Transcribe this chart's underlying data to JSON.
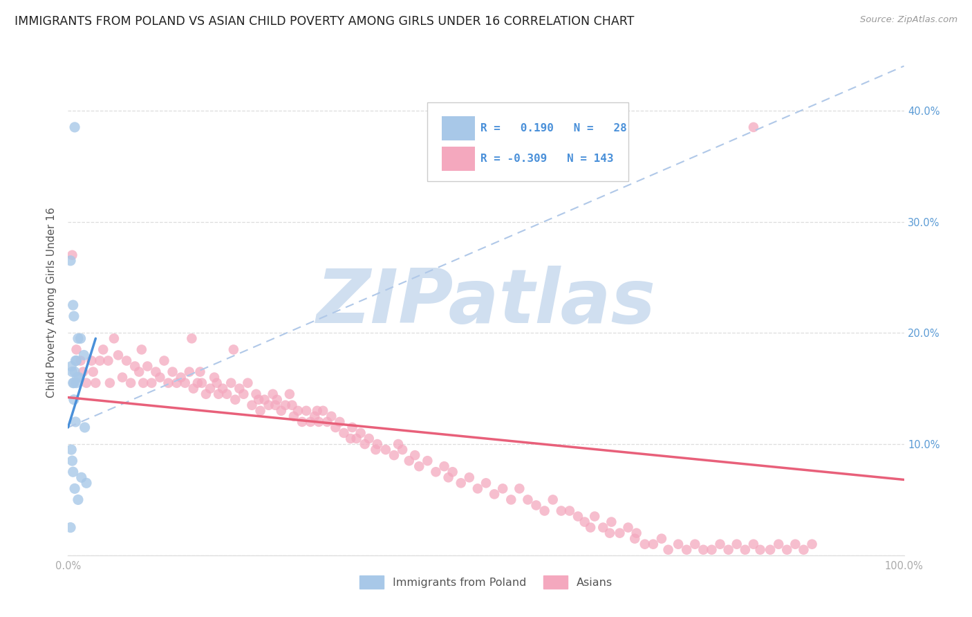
{
  "title": "IMMIGRANTS FROM POLAND VS ASIAN CHILD POVERTY AMONG GIRLS UNDER 16 CORRELATION CHART",
  "source": "Source: ZipAtlas.com",
  "ylabel": "Child Poverty Among Girls Under 16",
  "legend_label1": "Immigrants from Poland",
  "legend_label2": "Asians",
  "r1": 0.19,
  "n1": 28,
  "r2": -0.309,
  "n2": 143,
  "color_blue": "#a8c8e8",
  "color_pink": "#f4a8be",
  "color_blue_line": "#4a90d9",
  "color_pink_line": "#e8607a",
  "color_dashed": "#b0c8e8",
  "xlim": [
    0,
    1.0
  ],
  "ylim": [
    0,
    0.455
  ],
  "blue_line_x": [
    0.0,
    0.033
  ],
  "blue_line_y": [
    0.115,
    0.195
  ],
  "dash_line_x": [
    0.0,
    1.0
  ],
  "dash_line_y": [
    0.115,
    0.44
  ],
  "pink_line_x": [
    0.0,
    1.0
  ],
  "pink_line_y": [
    0.142,
    0.068
  ],
  "y_ticks": [
    0.0,
    0.1,
    0.2,
    0.3,
    0.4
  ],
  "y_tick_labels": [
    "",
    "10.0%",
    "20.0%",
    "30.0%",
    "40.0%"
  ],
  "watermark_text": "ZIPatlas",
  "watermark_color": "#d0dff0",
  "background_color": "#ffffff",
  "grid_color": "#dddddd",
  "title_color": "#222222",
  "source_color": "#999999",
  "ylabel_color": "#555555",
  "tick_color": "#aaaaaa",
  "right_tick_color": "#5b9bd5",
  "legend_text_color": "#4a90d9",
  "poland_x": [
    0.008,
    0.003,
    0.015,
    0.006,
    0.007,
    0.012,
    0.01,
    0.004,
    0.009,
    0.011,
    0.013,
    0.006,
    0.008,
    0.007,
    0.005,
    0.01,
    0.019,
    0.005,
    0.004,
    0.006,
    0.022,
    0.008,
    0.016,
    0.012,
    0.003,
    0.009,
    0.02,
    0.007
  ],
  "poland_y": [
    0.385,
    0.265,
    0.195,
    0.225,
    0.215,
    0.195,
    0.175,
    0.17,
    0.175,
    0.16,
    0.16,
    0.155,
    0.165,
    0.155,
    0.165,
    0.155,
    0.18,
    0.085,
    0.095,
    0.075,
    0.065,
    0.06,
    0.07,
    0.05,
    0.025,
    0.12,
    0.115,
    0.14
  ],
  "asian_x": [
    0.005,
    0.01,
    0.015,
    0.018,
    0.022,
    0.028,
    0.03,
    0.033,
    0.038,
    0.042,
    0.048,
    0.05,
    0.055,
    0.06,
    0.065,
    0.07,
    0.075,
    0.08,
    0.085,
    0.088,
    0.09,
    0.095,
    0.1,
    0.105,
    0.11,
    0.115,
    0.12,
    0.125,
    0.13,
    0.135,
    0.14,
    0.145,
    0.148,
    0.15,
    0.155,
    0.158,
    0.16,
    0.165,
    0.17,
    0.175,
    0.178,
    0.18,
    0.185,
    0.19,
    0.195,
    0.198,
    0.2,
    0.205,
    0.21,
    0.215,
    0.22,
    0.225,
    0.228,
    0.23,
    0.235,
    0.24,
    0.245,
    0.248,
    0.25,
    0.255,
    0.26,
    0.265,
    0.268,
    0.27,
    0.275,
    0.28,
    0.285,
    0.29,
    0.295,
    0.298,
    0.3,
    0.305,
    0.31,
    0.315,
    0.32,
    0.325,
    0.33,
    0.338,
    0.34,
    0.345,
    0.35,
    0.355,
    0.36,
    0.368,
    0.37,
    0.38,
    0.39,
    0.395,
    0.4,
    0.408,
    0.415,
    0.42,
    0.43,
    0.44,
    0.45,
    0.455,
    0.46,
    0.47,
    0.48,
    0.49,
    0.5,
    0.51,
    0.52,
    0.53,
    0.54,
    0.55,
    0.56,
    0.57,
    0.58,
    0.59,
    0.6,
    0.61,
    0.618,
    0.625,
    0.63,
    0.64,
    0.648,
    0.65,
    0.66,
    0.67,
    0.678,
    0.68,
    0.69,
    0.7,
    0.71,
    0.718,
    0.73,
    0.74,
    0.75,
    0.76,
    0.77,
    0.78,
    0.79,
    0.8,
    0.81,
    0.82,
    0.828,
    0.84,
    0.85,
    0.86,
    0.87,
    0.88,
    0.89
  ],
  "asian_y": [
    0.27,
    0.185,
    0.175,
    0.165,
    0.155,
    0.175,
    0.165,
    0.155,
    0.175,
    0.185,
    0.175,
    0.155,
    0.195,
    0.18,
    0.16,
    0.175,
    0.155,
    0.17,
    0.165,
    0.185,
    0.155,
    0.17,
    0.155,
    0.165,
    0.16,
    0.175,
    0.155,
    0.165,
    0.155,
    0.16,
    0.155,
    0.165,
    0.195,
    0.15,
    0.155,
    0.165,
    0.155,
    0.145,
    0.15,
    0.16,
    0.155,
    0.145,
    0.15,
    0.145,
    0.155,
    0.185,
    0.14,
    0.15,
    0.145,
    0.155,
    0.135,
    0.145,
    0.14,
    0.13,
    0.14,
    0.135,
    0.145,
    0.135,
    0.14,
    0.13,
    0.135,
    0.145,
    0.135,
    0.125,
    0.13,
    0.12,
    0.13,
    0.12,
    0.125,
    0.13,
    0.12,
    0.13,
    0.12,
    0.125,
    0.115,
    0.12,
    0.11,
    0.105,
    0.115,
    0.105,
    0.11,
    0.1,
    0.105,
    0.095,
    0.1,
    0.095,
    0.09,
    0.1,
    0.095,
    0.085,
    0.09,
    0.08,
    0.085,
    0.075,
    0.08,
    0.07,
    0.075,
    0.065,
    0.07,
    0.06,
    0.065,
    0.055,
    0.06,
    0.05,
    0.06,
    0.05,
    0.045,
    0.04,
    0.05,
    0.04,
    0.04,
    0.035,
    0.03,
    0.025,
    0.035,
    0.025,
    0.02,
    0.03,
    0.02,
    0.025,
    0.015,
    0.02,
    0.01,
    0.01,
    0.015,
    0.005,
    0.01,
    0.005,
    0.01,
    0.005,
    0.005,
    0.01,
    0.005,
    0.01,
    0.005,
    0.01,
    0.005,
    0.005,
    0.01,
    0.005,
    0.01,
    0.005,
    0.01
  ],
  "asian_outlier_x": [
    0.82
  ],
  "asian_outlier_y": [
    0.385
  ]
}
